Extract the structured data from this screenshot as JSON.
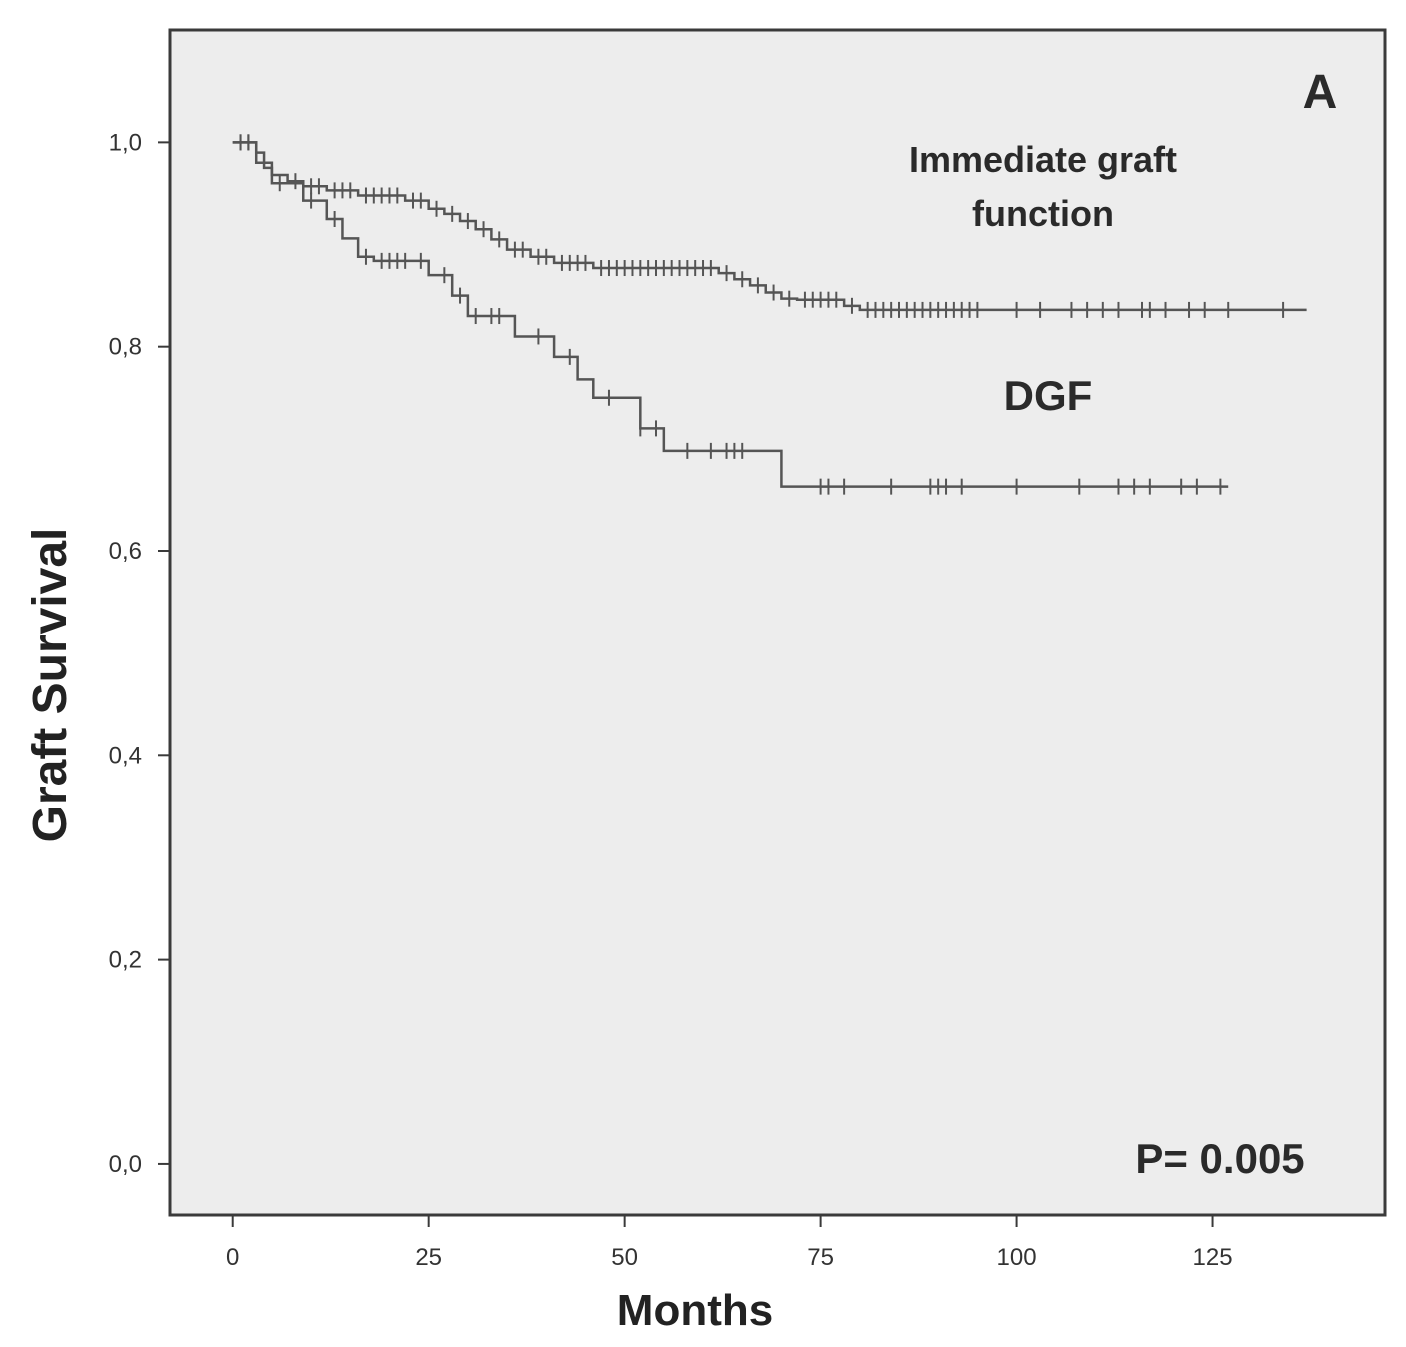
{
  "chart_data": {
    "type": "line",
    "panel_label": "A",
    "xlabel": "Months",
    "ylabel": "Graft Survival",
    "xlim": [
      -8,
      147
    ],
    "ylim": [
      -0.05,
      1.11
    ],
    "x_ticks": [
      0,
      25,
      50,
      75,
      100,
      125
    ],
    "x_tick_labels": [
      "0",
      "25",
      "50",
      "75",
      "100",
      "125"
    ],
    "y_ticks": [
      0.0,
      0.2,
      0.4,
      0.6,
      0.8,
      1.0
    ],
    "y_tick_labels": [
      "0,0",
      "0,2",
      "0,4",
      "0,6",
      "0,8",
      "1,0"
    ],
    "grid": false,
    "legend": "none",
    "annotation": "P= 0.005",
    "series": [
      {
        "name": "Immediate graft function",
        "color": "#555555",
        "step_x": [
          0,
          3,
          4,
          5,
          7,
          9,
          12,
          16,
          22,
          25,
          27,
          29,
          31,
          33,
          35,
          38,
          41,
          46,
          62,
          64,
          66,
          68,
          70,
          72,
          78,
          80,
          137
        ],
        "step_y": [
          1.0,
          0.99,
          0.975,
          0.968,
          0.962,
          0.957,
          0.953,
          0.948,
          0.943,
          0.935,
          0.93,
          0.923,
          0.915,
          0.905,
          0.895,
          0.888,
          0.882,
          0.877,
          0.872,
          0.866,
          0.86,
          0.853,
          0.847,
          0.846,
          0.84,
          0.836,
          0.836
        ],
        "censor_x": [
          1,
          2,
          8,
          10,
          11,
          13,
          14,
          15,
          17,
          18,
          19,
          20,
          21,
          23,
          24,
          26,
          28,
          30,
          32,
          34,
          36,
          37,
          39,
          40,
          42,
          43,
          44,
          45,
          47,
          48,
          49,
          50,
          51,
          52,
          53,
          54,
          55,
          56,
          57,
          58,
          59,
          60,
          61,
          63,
          65,
          67,
          69,
          71,
          73,
          74,
          75,
          76,
          77,
          79,
          81,
          82,
          83,
          84,
          85,
          86,
          87,
          88,
          89,
          90,
          91,
          92,
          93,
          94,
          95,
          100,
          103,
          107,
          109,
          111,
          113,
          116,
          117,
          119,
          122,
          124,
          127,
          134
        ]
      },
      {
        "name": "DGF",
        "color": "#555555",
        "step_x": [
          0,
          3,
          5,
          9,
          12,
          14,
          16,
          18,
          25,
          28,
          30,
          36,
          41,
          44,
          46,
          52,
          55,
          70,
          127
        ],
        "step_y": [
          1.0,
          0.98,
          0.96,
          0.943,
          0.925,
          0.906,
          0.888,
          0.884,
          0.87,
          0.85,
          0.83,
          0.81,
          0.79,
          0.768,
          0.75,
          0.72,
          0.698,
          0.663,
          0.663
        ],
        "censor_x": [
          1,
          2,
          6,
          10,
          13,
          17,
          19,
          20,
          21,
          22,
          24,
          27,
          29,
          31,
          33,
          34,
          39,
          43,
          48,
          52,
          54,
          58,
          61,
          63,
          64,
          65,
          75,
          76,
          78,
          84,
          89,
          90,
          91,
          93,
          100,
          108,
          113,
          115,
          117,
          121,
          123,
          126
        ]
      }
    ]
  }
}
